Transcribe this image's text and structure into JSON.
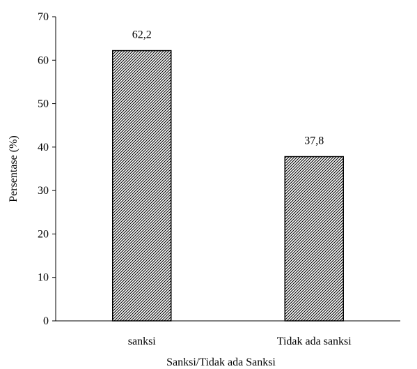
{
  "chart_data": {
    "type": "bar",
    "categories": [
      "sanksi",
      "Tidak ada sanksi"
    ],
    "values": [
      62.2,
      37.8
    ],
    "data_labels": [
      "62,2",
      "37,8"
    ],
    "title": "",
    "xlabel": "Sanksi/Tidak ada Sanksi",
    "ylabel": "Persentase (%)",
    "ylim": [
      0,
      70
    ],
    "yticks": [
      0,
      10,
      20,
      30,
      40,
      50,
      60,
      70
    ],
    "grid": false,
    "legend": "none",
    "bar_fill": "diagonal-hatch",
    "colors": {
      "bar_border": "#000000",
      "hatch": "#000000",
      "background": "#ffffff",
      "axis": "#000000"
    }
  }
}
